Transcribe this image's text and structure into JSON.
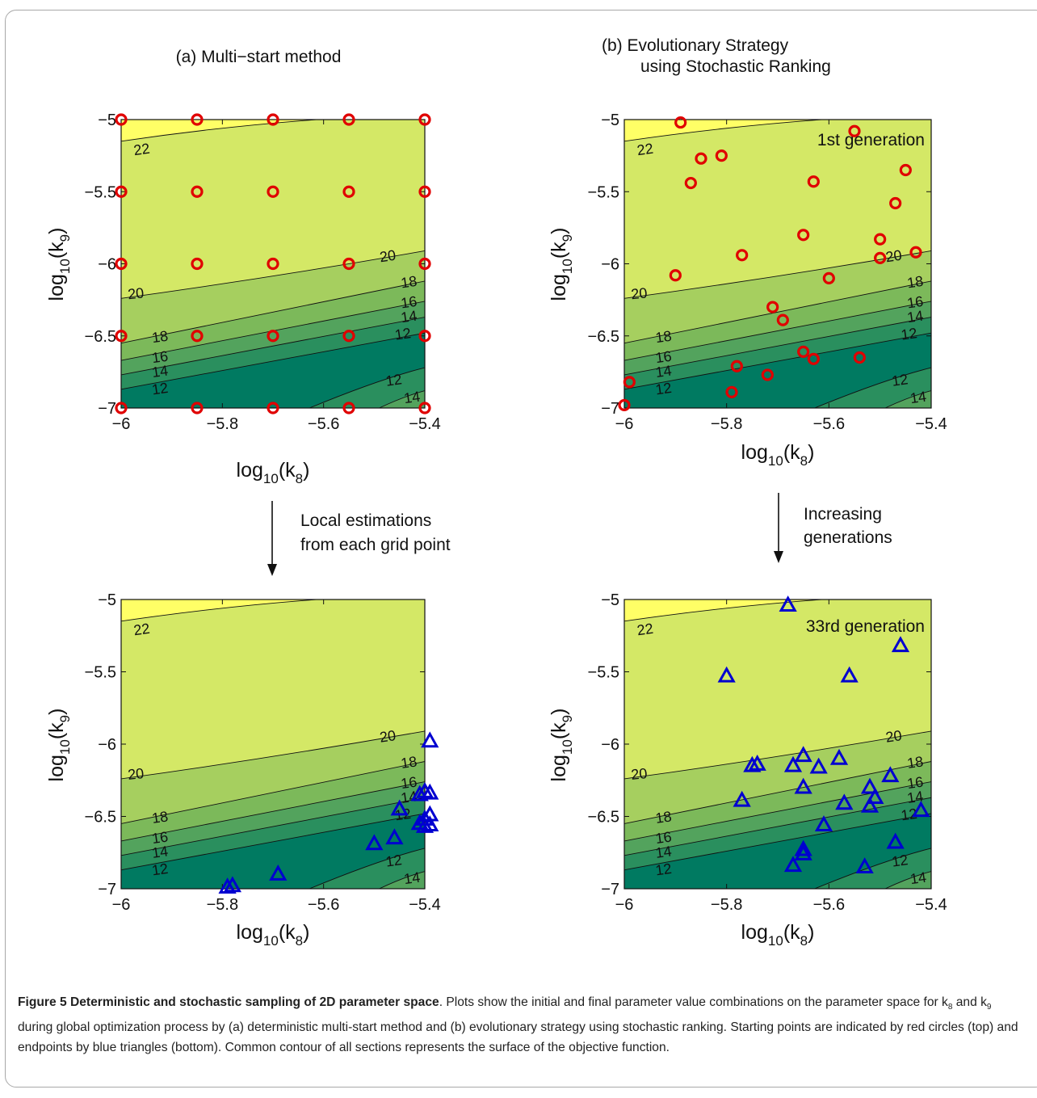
{
  "headings": {
    "left": "(a) Multi−start method",
    "right_line1": "(b)   Evolutionary Strategy",
    "right_line2": "using Stochastic Ranking"
  },
  "arrows": {
    "left_line1": "Local estimations",
    "left_line2": "from each grid point",
    "right_line1": "Increasing",
    "right_line2": "generations"
  },
  "colors": {
    "c_lt12": "#007a61",
    "c_12_14": "#2a8f5e",
    "c_14_16": "#53a35d",
    "c_16_18": "#7cb95a",
    "c_18_20": "#a6cf5f",
    "c_20_22": "#d4e866",
    "c_gt22": "#ffff66",
    "start_marker": "#e00000",
    "end_marker": "#0000d0"
  },
  "chart_data": [
    {
      "type": "scatter",
      "id": "a_top",
      "xlabel_main": "log",
      "xlabel_sub": "10",
      "xlabel_paren": "(k",
      "xlabel_idx": "8",
      "xlabel_close": ")",
      "ylabel_main": "log",
      "ylabel_sub": "10",
      "ylabel_paren": "(k",
      "ylabel_idx": "9",
      "ylabel_close": ")",
      "xlim": [
        -6,
        -5.4
      ],
      "ylim": [
        -7,
        -5
      ],
      "xticks": [
        "−6",
        "−5.8",
        "−5.6",
        "−5.4"
      ],
      "yticks": [
        "−5",
        "−5.5",
        "−6",
        "−6.5",
        "−7"
      ],
      "marker": "circle",
      "annotation": "",
      "points": [
        [
          -6,
          -5
        ],
        [
          -5.85,
          -5
        ],
        [
          -5.7,
          -5
        ],
        [
          -5.55,
          -5
        ],
        [
          -5.4,
          -5
        ],
        [
          -6,
          -5.5
        ],
        [
          -5.85,
          -5.5
        ],
        [
          -5.7,
          -5.5
        ],
        [
          -5.55,
          -5.5
        ],
        [
          -5.4,
          -5.5
        ],
        [
          -6,
          -6
        ],
        [
          -5.85,
          -6
        ],
        [
          -5.7,
          -6
        ],
        [
          -5.55,
          -6
        ],
        [
          -5.4,
          -6
        ],
        [
          -6,
          -6.5
        ],
        [
          -5.85,
          -6.5
        ],
        [
          -5.7,
          -6.5
        ],
        [
          -5.55,
          -6.5
        ],
        [
          -5.4,
          -6.5
        ],
        [
          -6,
          -7
        ],
        [
          -5.85,
          -7
        ],
        [
          -5.7,
          -7
        ],
        [
          -5.55,
          -7
        ],
        [
          -5.4,
          -7
        ]
      ]
    },
    {
      "type": "scatter",
      "id": "b_top",
      "xlabel_main": "log",
      "xlabel_sub": "10",
      "xlabel_paren": "(k",
      "xlabel_idx": "8",
      "xlabel_close": ")",
      "ylabel_main": "log",
      "ylabel_sub": "10",
      "ylabel_paren": "(k",
      "ylabel_idx": "9",
      "ylabel_close": ")",
      "xlim": [
        -6,
        -5.4
      ],
      "ylim": [
        -7,
        -5
      ],
      "xticks": [
        "−6",
        "−5.8",
        "−5.6",
        "−5.4"
      ],
      "yticks": [
        "−5",
        "−5.5",
        "−6",
        "−6.5",
        "−7"
      ],
      "marker": "circle",
      "annotation": "1st generation",
      "points": [
        [
          -5.89,
          -5.02
        ],
        [
          -5.55,
          -5.08
        ],
        [
          -5.85,
          -5.27
        ],
        [
          -5.81,
          -5.25
        ],
        [
          -5.45,
          -5.35
        ],
        [
          -5.87,
          -5.44
        ],
        [
          -5.63,
          -5.43
        ],
        [
          -5.47,
          -5.58
        ],
        [
          -5.65,
          -5.8
        ],
        [
          -5.5,
          -5.83
        ],
        [
          -5.77,
          -5.94
        ],
        [
          -5.43,
          -5.92
        ],
        [
          -5.5,
          -5.96
        ],
        [
          -5.9,
          -6.08
        ],
        [
          -5.6,
          -6.1
        ],
        [
          -5.71,
          -6.3
        ],
        [
          -5.69,
          -6.39
        ],
        [
          -5.65,
          -6.61
        ],
        [
          -5.63,
          -6.66
        ],
        [
          -5.54,
          -6.65
        ],
        [
          -5.78,
          -6.71
        ],
        [
          -5.72,
          -6.77
        ],
        [
          -5.99,
          -6.82
        ],
        [
          -5.79,
          -6.89
        ],
        [
          -6,
          -6.98
        ]
      ]
    },
    {
      "type": "scatter",
      "id": "a_bottom",
      "xlabel_main": "log",
      "xlabel_sub": "10",
      "xlabel_paren": "(k",
      "xlabel_idx": "8",
      "xlabel_close": ")",
      "ylabel_main": "log",
      "ylabel_sub": "10",
      "ylabel_paren": "(k",
      "ylabel_idx": "9",
      "ylabel_close": ")",
      "xlim": [
        -6,
        -5.4
      ],
      "ylim": [
        -7,
        -5
      ],
      "xticks": [
        "−6",
        "−5.8",
        "−5.6",
        "−5.4"
      ],
      "yticks": [
        "−5",
        "−5.5",
        "−6",
        "−6.5",
        "−7"
      ],
      "marker": "triangle",
      "annotation": "",
      "points": [
        [
          -5.39,
          -5.98
        ],
        [
          -5.4,
          -6.33
        ],
        [
          -5.39,
          -6.34
        ],
        [
          -5.41,
          -6.35
        ],
        [
          -5.39,
          -6.49
        ],
        [
          -5.45,
          -6.45
        ],
        [
          -5.4,
          -6.52
        ],
        [
          -5.41,
          -6.55
        ],
        [
          -5.39,
          -6.56
        ],
        [
          -5.4,
          -6.57
        ],
        [
          -5.46,
          -6.65
        ],
        [
          -5.5,
          -6.69
        ],
        [
          -5.69,
          -6.9
        ],
        [
          -5.78,
          -6.98
        ],
        [
          -5.79,
          -6.99
        ]
      ]
    },
    {
      "type": "scatter",
      "id": "b_bottom",
      "xlabel_main": "log",
      "xlabel_sub": "10",
      "xlabel_paren": "(k",
      "xlabel_idx": "8",
      "xlabel_close": ")",
      "ylabel_main": "log",
      "ylabel_sub": "10",
      "ylabel_paren": "(k",
      "ylabel_idx": "9",
      "ylabel_close": ")",
      "xlim": [
        -6,
        -5.4
      ],
      "ylim": [
        -7,
        -5
      ],
      "xticks": [
        "−6",
        "−5.8",
        "−5.6",
        "−5.4"
      ],
      "yticks": [
        "−5",
        "−5.5",
        "−6",
        "−6.5",
        "−7"
      ],
      "marker": "triangle",
      "annotation": "33rd generation",
      "points": [
        [
          -5.68,
          -5.04
        ],
        [
          -5.46,
          -5.32
        ],
        [
          -5.8,
          -5.53
        ],
        [
          -5.56,
          -5.53
        ],
        [
          -5.65,
          -6.08
        ],
        [
          -5.58,
          -6.1
        ],
        [
          -5.75,
          -6.15
        ],
        [
          -5.74,
          -6.14
        ],
        [
          -5.67,
          -6.15
        ],
        [
          -5.62,
          -6.16
        ],
        [
          -5.48,
          -6.22
        ],
        [
          -5.52,
          -6.3
        ],
        [
          -5.65,
          -6.3
        ],
        [
          -5.51,
          -6.37
        ],
        [
          -5.77,
          -6.39
        ],
        [
          -5.57,
          -6.41
        ],
        [
          -5.52,
          -6.43
        ],
        [
          -5.42,
          -6.46
        ],
        [
          -5.61,
          -6.56
        ],
        [
          -5.65,
          -6.73
        ],
        [
          -5.65,
          -6.76
        ],
        [
          -5.67,
          -6.84
        ],
        [
          -5.53,
          -6.85
        ],
        [
          -5.47,
          -6.68
        ]
      ]
    }
  ],
  "contour_labels": {
    "l22": "22",
    "l20": "20",
    "l18": "18",
    "l16": "16",
    "l14": "14",
    "l12": "12"
  },
  "caption": {
    "title": "Figure 5 Deterministic and stochastic sampling of 2D parameter space",
    "body_part1": ". Plots show the initial and final parameter value combinations on the pa­rameter space for k",
    "k8_sub": "8",
    "body_part2": " and k",
    "k9_sub": "9",
    "body_part3": " during global optimization process by (a) deterministic multi-start method and (b) evolutionary strategy using stochastic ranking. Starting points are indicated by red circles (top) and endpoints by blue triangles (bottom). Common contour of all sections represents the surface of the objective function."
  }
}
